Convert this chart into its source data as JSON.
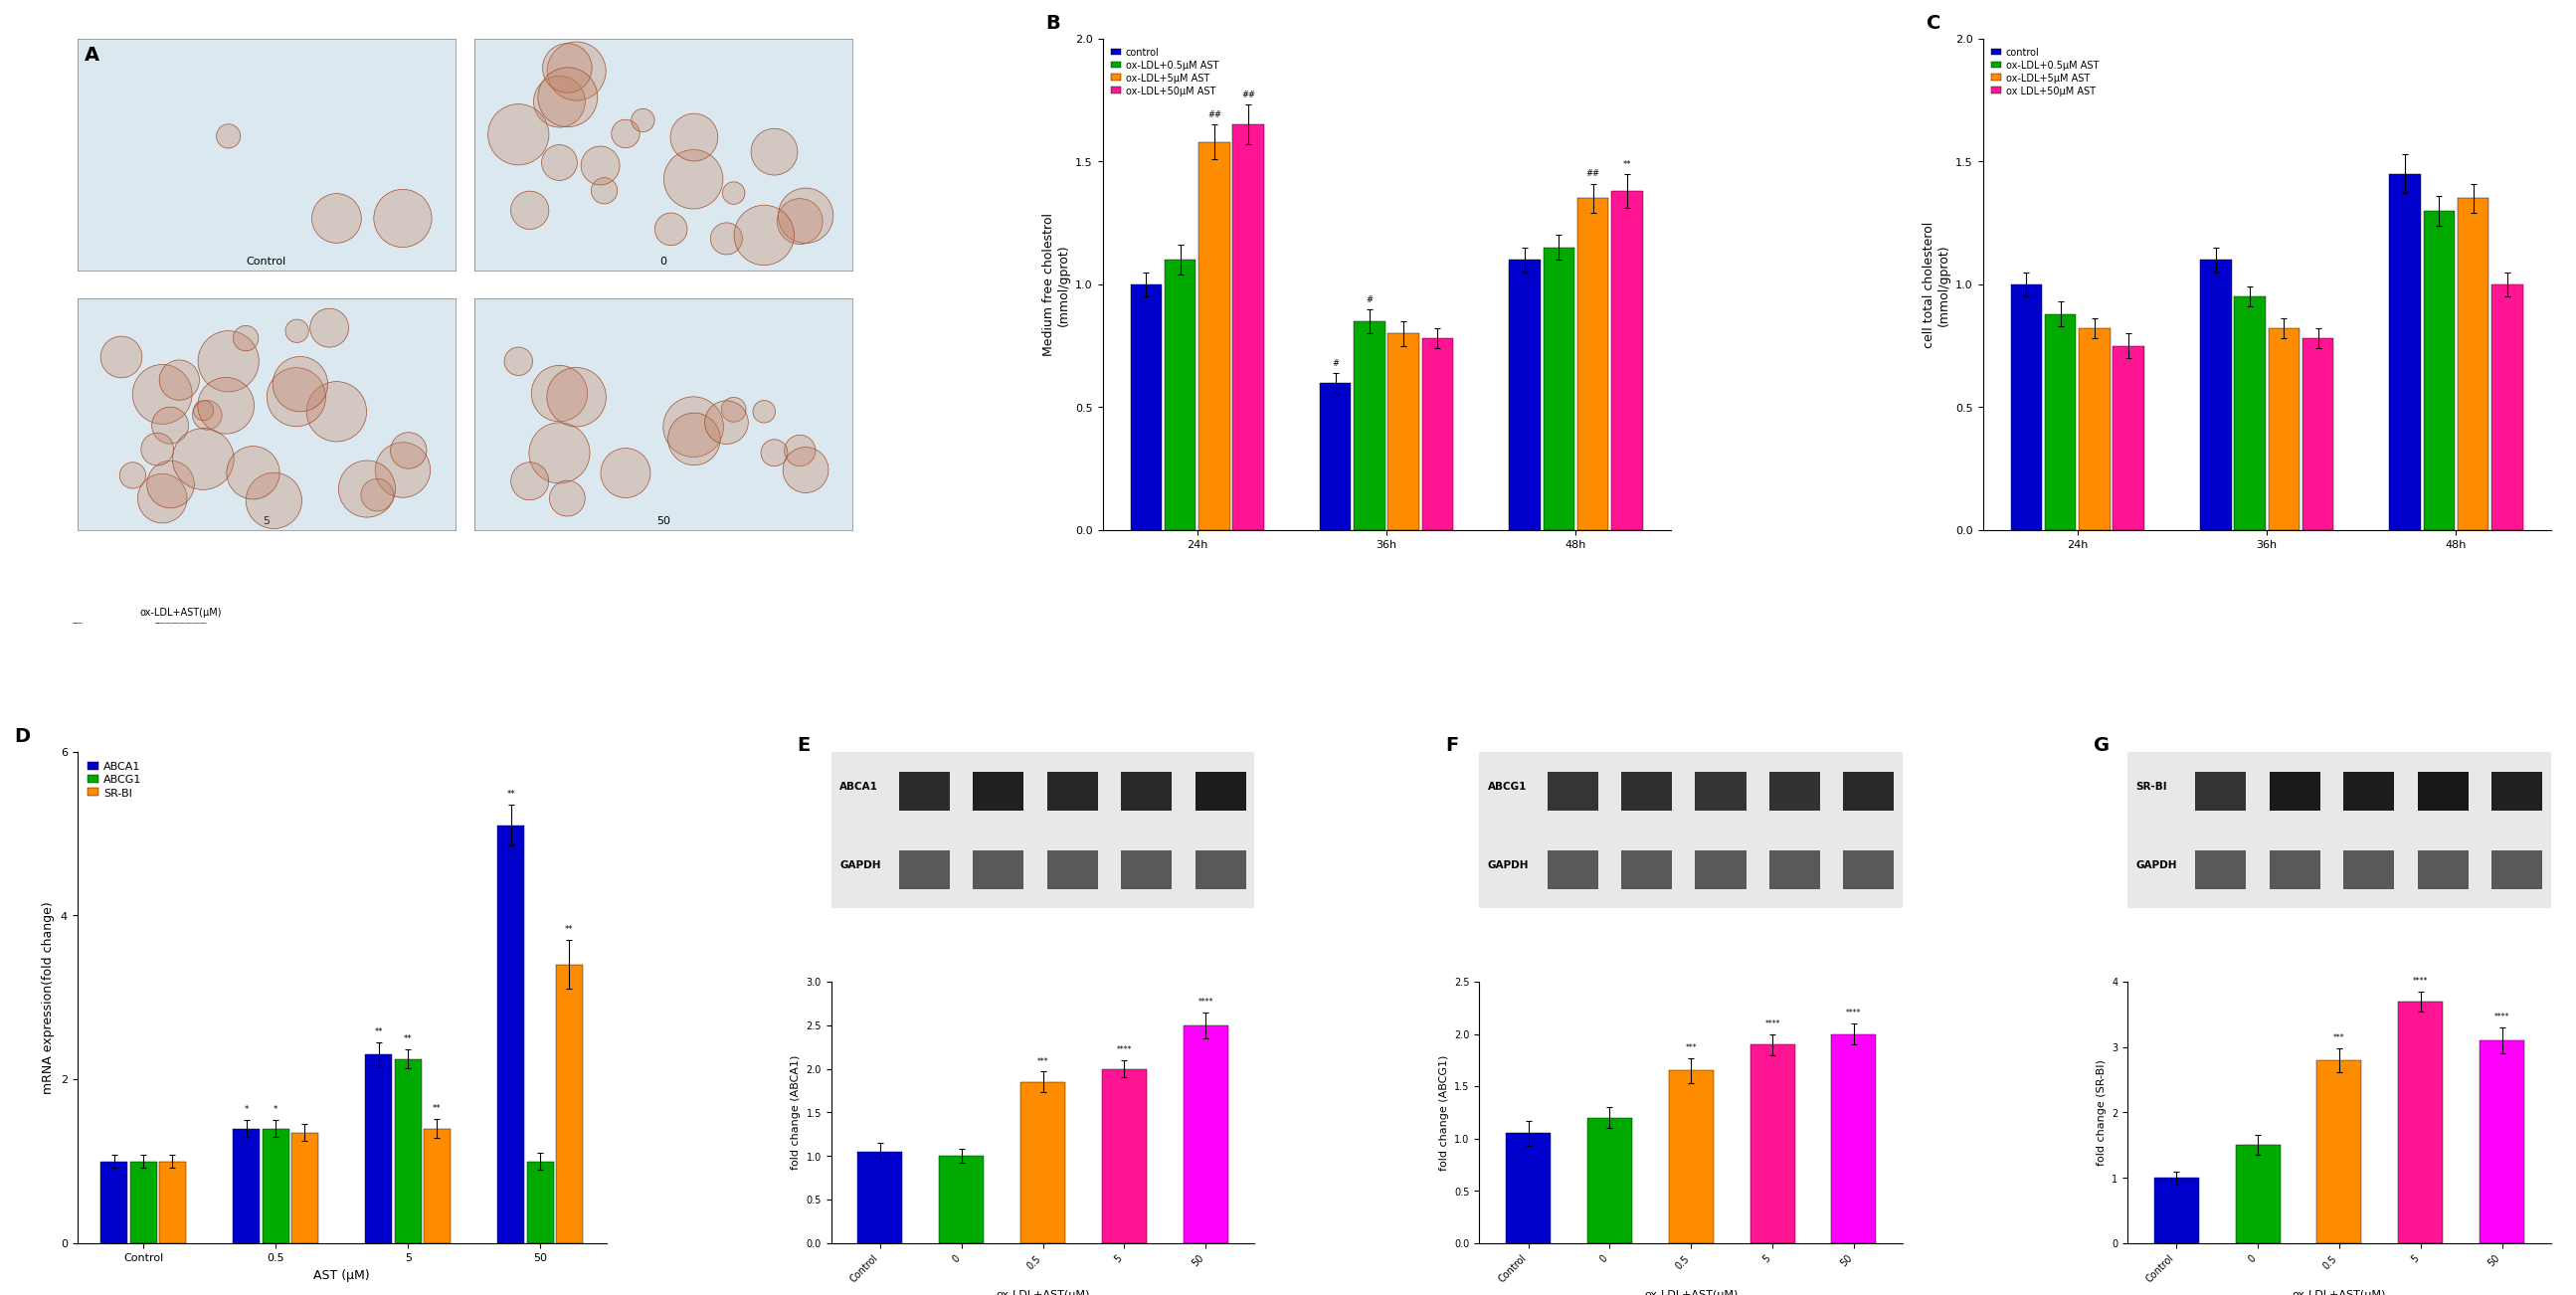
{
  "panel_B": {
    "title": "B",
    "ylabel": "Medium free cholestrol\n(mmol/gprot)",
    "groups": [
      "24h",
      "36h",
      "48h"
    ],
    "legend_labels": [
      "control",
      "ox-LDL+0.5μM AST",
      "ox-LDL+5μM AST",
      "ox-LDL+50μM AST"
    ],
    "colors": [
      "#0000CD",
      "#00AA00",
      "#FF8C00",
      "#FF1493"
    ],
    "values": [
      [
        1.0,
        0.6,
        1.1
      ],
      [
        1.1,
        0.85,
        1.15
      ],
      [
        1.58,
        0.8,
        1.35
      ],
      [
        1.65,
        0.78,
        1.38
      ]
    ],
    "errors": [
      [
        0.05,
        0.04,
        0.05
      ],
      [
        0.06,
        0.05,
        0.05
      ],
      [
        0.07,
        0.05,
        0.06
      ],
      [
        0.08,
        0.04,
        0.07
      ]
    ],
    "ylim": [
      0,
      2.0
    ],
    "yticks": [
      0.0,
      0.5,
      1.0,
      1.5,
      2.0
    ]
  },
  "panel_C": {
    "title": "C",
    "ylabel": "cell total cholesterol\n(mmol/gprot)",
    "groups": [
      "24h",
      "36h",
      "48h"
    ],
    "legend_labels": [
      "control",
      "ox-LDL+0.5μM AST",
      "ox-LDL+5μM AST",
      "ox LDL+50μM AST"
    ],
    "colors": [
      "#0000CD",
      "#00AA00",
      "#FF8C00",
      "#FF1493"
    ],
    "values": [
      [
        1.0,
        1.1,
        1.45
      ],
      [
        0.88,
        0.95,
        1.3
      ],
      [
        0.82,
        0.82,
        1.35
      ],
      [
        0.75,
        0.78,
        1.0
      ]
    ],
    "errors": [
      [
        0.05,
        0.05,
        0.08
      ],
      [
        0.05,
        0.04,
        0.06
      ],
      [
        0.04,
        0.04,
        0.06
      ],
      [
        0.05,
        0.04,
        0.05
      ]
    ],
    "ylim": [
      0,
      2.0
    ],
    "yticks": [
      0.0,
      0.5,
      1.0,
      1.5,
      2.0
    ]
  },
  "panel_D": {
    "title": "D",
    "ylabel": "mRNA expression(fold change)",
    "xlabel": "AST (μM)",
    "groups": [
      "Control",
      "0.5",
      "5",
      "50"
    ],
    "legend_labels": [
      "ABCA1",
      "ABCG1",
      "SR-BI"
    ],
    "colors": [
      "#0000CD",
      "#00AA00",
      "#FF8C00"
    ],
    "values": [
      [
        1.0,
        1.4,
        2.3,
        5.1
      ],
      [
        1.0,
        1.4,
        2.25,
        1.0
      ],
      [
        1.0,
        1.35,
        1.4,
        3.4
      ]
    ],
    "errors": [
      [
        0.08,
        0.1,
        0.15,
        0.25
      ],
      [
        0.08,
        0.1,
        0.12,
        0.1
      ],
      [
        0.08,
        0.1,
        0.12,
        0.3
      ]
    ],
    "ylim": [
      0,
      6
    ],
    "yticks": [
      0,
      2,
      4,
      6
    ]
  },
  "panel_E": {
    "title": "E",
    "protein": "ABCA1",
    "xlabel": "ox-LDL+AST(μM)",
    "ylabel": "fold change (ABCA1)",
    "groups": [
      "Control",
      "0",
      "0.5",
      "5",
      "50"
    ],
    "colors": [
      "#0000CD",
      "#00AA00",
      "#FF8C00",
      "#FF1493",
      "#FF1493"
    ],
    "bar_colors": [
      "#0000CD",
      "#00AA00",
      "#FF8C00",
      "#FF1493",
      "#FF00FF"
    ],
    "values": [
      1.05,
      1.0,
      1.85,
      2.0,
      2.5
    ],
    "errors": [
      0.1,
      0.08,
      0.12,
      0.1,
      0.15
    ],
    "ylim": [
      0,
      3.0
    ],
    "yticks": [
      0.0,
      0.5,
      1.0,
      1.5,
      2.0,
      2.5,
      3.0
    ]
  },
  "panel_F": {
    "title": "F",
    "protein": "ABCG1",
    "xlabel": "ox-LDL+AST(μM)",
    "ylabel": "fold change (ABCG1)",
    "groups": [
      "Control",
      "0",
      "0.5",
      "5",
      "50"
    ],
    "bar_colors": [
      "#0000CD",
      "#00AA00",
      "#FF8C00",
      "#FF1493",
      "#FF00FF"
    ],
    "values": [
      1.05,
      1.2,
      1.65,
      1.9,
      2.0
    ],
    "errors": [
      0.12,
      0.1,
      0.12,
      0.1,
      0.1
    ],
    "ylim": [
      0,
      2.5
    ],
    "yticks": [
      0.0,
      0.5,
      1.0,
      1.5,
      2.0,
      2.5
    ]
  },
  "panel_G": {
    "title": "G",
    "protein": "SR-BI",
    "xlabel": "ox-LDL+AST(μM)",
    "ylabel": "fold change (SR-BI)",
    "groups": [
      "Control",
      "0",
      "0.5",
      "5",
      "50"
    ],
    "bar_colors": [
      "#0000CD",
      "#00AA00",
      "#FF8C00",
      "#FF1493",
      "#FF00FF"
    ],
    "values": [
      1.0,
      1.5,
      2.8,
      3.7,
      3.1
    ],
    "errors": [
      0.1,
      0.15,
      0.18,
      0.15,
      0.2
    ],
    "ylim": [
      0,
      4
    ],
    "yticks": [
      0,
      1,
      2,
      3,
      4
    ]
  },
  "background_color": "#ffffff",
  "bar_width": 0.18,
  "fontsize_label": 9,
  "fontsize_tick": 8,
  "fontsize_legend": 8,
  "fontsize_panel": 14
}
